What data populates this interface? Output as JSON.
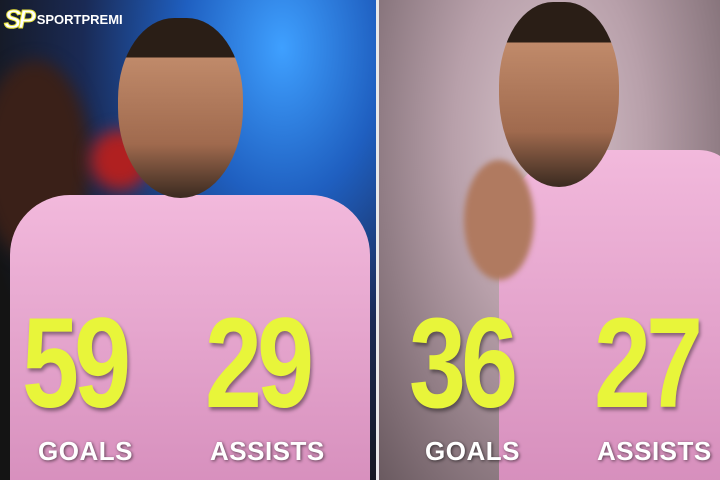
{
  "brand": {
    "logo_mark": "SP",
    "name": "SPORTPREMI"
  },
  "colors": {
    "number": "#e8f53a",
    "label": "#ffffff",
    "shirt": "#f2b9dc"
  },
  "players": [
    {
      "goals": "59",
      "goals_label": "GOALS",
      "assists": "29",
      "assists_label": "ASSISTS"
    },
    {
      "goals": "36",
      "goals_label": "GOALS",
      "assists": "27",
      "assists_label": "ASSISTS"
    }
  ]
}
